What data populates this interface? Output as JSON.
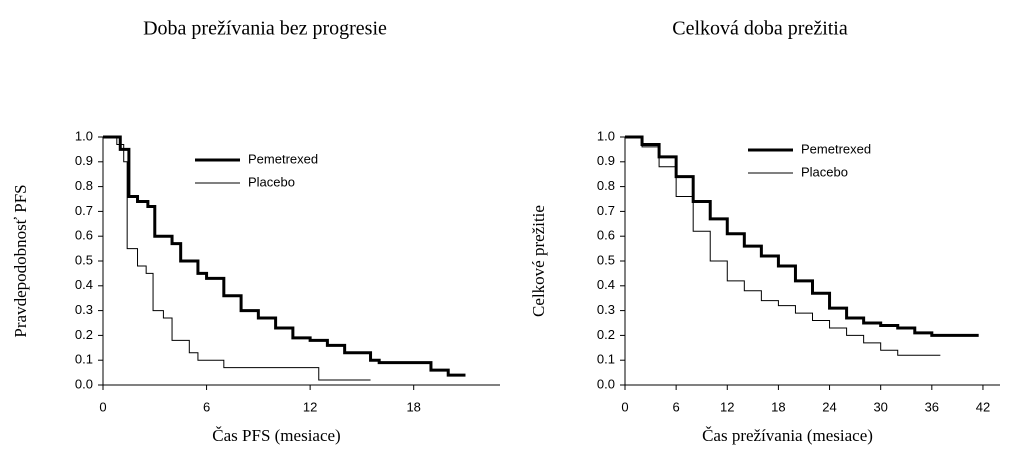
{
  "chart_data": [
    {
      "type": "line",
      "step": true,
      "title": "Doba prežívania bez progresie",
      "x_label": "Čas PFS (mesiace)",
      "y_label": "Pravdepodobnosť PFS",
      "xlim": [
        0,
        23
      ],
      "ylim": [
        0,
        1
      ],
      "xticks": [
        0,
        6,
        12,
        18
      ],
      "yticks": [
        {
          "value": 0,
          "label": "0.0"
        },
        0.1,
        0.2,
        0.3,
        0.4,
        0.5,
        0.6,
        0.7,
        0.8,
        0.9,
        {
          "value": 1,
          "label": "1.0"
        }
      ],
      "grid": false,
      "legend": "upper center",
      "series": [
        {
          "name": "Pemetrexed",
          "color": "#000000",
          "line_width": 3,
          "x": [
            0,
            1.0,
            1.5,
            2,
            2.6,
            3,
            4,
            4.5,
            5.5,
            6,
            7,
            8,
            9,
            10,
            11,
            12,
            13,
            14,
            15.5,
            16,
            18,
            19,
            20,
            21
          ],
          "values": [
            1.0,
            0.95,
            0.76,
            0.74,
            0.72,
            0.6,
            0.57,
            0.5,
            0.45,
            0.43,
            0.36,
            0.3,
            0.27,
            0.23,
            0.19,
            0.18,
            0.16,
            0.13,
            0.1,
            0.09,
            0.09,
            0.06,
            0.04,
            0.04
          ]
        },
        {
          "name": "Placebo",
          "color": "#000000",
          "line_width": 1,
          "x": [
            0,
            0.8,
            1.2,
            1.4,
            2,
            2.5,
            2.9,
            3.5,
            4,
            5,
            5.5,
            7,
            12,
            12.5,
            15.5
          ],
          "values": [
            1.0,
            0.97,
            0.9,
            0.55,
            0.48,
            0.45,
            0.3,
            0.27,
            0.18,
            0.13,
            0.1,
            0.07,
            0.07,
            0.02,
            0.02
          ]
        }
      ]
    },
    {
      "type": "line",
      "step": true,
      "title": "Celková doba prežitia",
      "x_label": "Čas prežívania (mesiace)",
      "y_label": "Celkové prežitie",
      "xlim": [
        0,
        44
      ],
      "ylim": [
        0,
        1
      ],
      "xticks": [
        0,
        6,
        12,
        18,
        24,
        30,
        36,
        42
      ],
      "yticks": [
        {
          "value": 0,
          "label": "0.0"
        },
        0.1,
        0.2,
        0.3,
        0.4,
        0.5,
        0.6,
        0.7,
        0.8,
        0.9,
        {
          "value": 1,
          "label": "1.0"
        }
      ],
      "grid": false,
      "legend": "upper center",
      "series": [
        {
          "name": "Pemetrexed",
          "color": "#000000",
          "line_width": 3,
          "x": [
            0,
            2,
            4,
            6,
            8,
            10,
            12,
            14,
            16,
            18,
            20,
            22,
            24,
            26,
            28,
            30,
            32,
            34,
            36,
            41.5
          ],
          "values": [
            1.0,
            0.97,
            0.92,
            0.84,
            0.74,
            0.67,
            0.61,
            0.56,
            0.52,
            0.48,
            0.42,
            0.37,
            0.31,
            0.27,
            0.25,
            0.24,
            0.23,
            0.21,
            0.2,
            0.2
          ]
        },
        {
          "name": "Placebo",
          "color": "#000000",
          "line_width": 1,
          "x": [
            0,
            2,
            4,
            6,
            8,
            10,
            12,
            14,
            16,
            18,
            20,
            22,
            24,
            26,
            28,
            30,
            32,
            37
          ],
          "values": [
            1.0,
            0.96,
            0.88,
            0.76,
            0.62,
            0.5,
            0.42,
            0.38,
            0.34,
            0.32,
            0.29,
            0.26,
            0.23,
            0.2,
            0.17,
            0.14,
            0.12,
            0.12
          ]
        }
      ]
    }
  ]
}
